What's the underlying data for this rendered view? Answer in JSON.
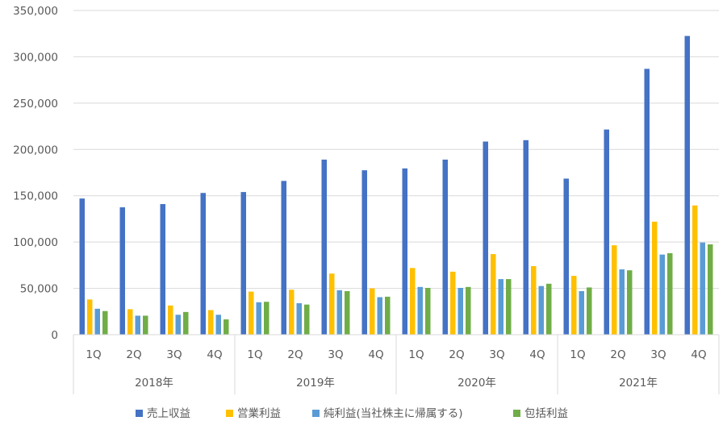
{
  "chart_data": {
    "type": "bar",
    "groups": [
      {
        "label": "2018年",
        "categories": [
          "1Q",
          "2Q",
          "3Q",
          "4Q"
        ]
      },
      {
        "label": "2019年",
        "categories": [
          "1Q",
          "2Q",
          "3Q",
          "4Q"
        ]
      },
      {
        "label": "2020年",
        "categories": [
          "1Q",
          "2Q",
          "3Q",
          "4Q"
        ]
      },
      {
        "label": "2021年",
        "categories": [
          "1Q",
          "2Q",
          "3Q",
          "4Q"
        ]
      }
    ],
    "series": [
      {
        "name": "売上収益",
        "color": "#4472C4",
        "values": [
          147000,
          137500,
          141000,
          153000,
          154000,
          166000,
          189000,
          177500,
          179500,
          189000,
          208500,
          210000,
          168500,
          221500,
          287000,
          322500
        ]
      },
      {
        "name": "営業利益",
        "color": "#FFC000",
        "values": [
          38000,
          27500,
          31500,
          26500,
          46500,
          48500,
          66000,
          50000,
          72000,
          68000,
          87000,
          74000,
          63500,
          96500,
          122000,
          139500
        ]
      },
      {
        "name": "純利益(当社株主に帰属する)",
        "color": "#5B9BD5",
        "values": [
          28000,
          20500,
          21500,
          21500,
          35000,
          34000,
          48000,
          40500,
          51500,
          50500,
          60000,
          52500,
          47000,
          70500,
          86500,
          99500
        ]
      },
      {
        "name": "包括利益",
        "color": "#70AD47",
        "values": [
          25500,
          20500,
          24500,
          16500,
          35500,
          32500,
          47000,
          41000,
          50500,
          51500,
          60000,
          55000,
          51000,
          69500,
          88000,
          97500
        ]
      }
    ],
    "yticks": [
      "0",
      "50,000",
      "100,000",
      "150,000",
      "200,000",
      "250,000",
      "300,000",
      "350,000"
    ],
    "ylim": [
      0,
      350000
    ],
    "grid": true,
    "legend": "bottom"
  }
}
